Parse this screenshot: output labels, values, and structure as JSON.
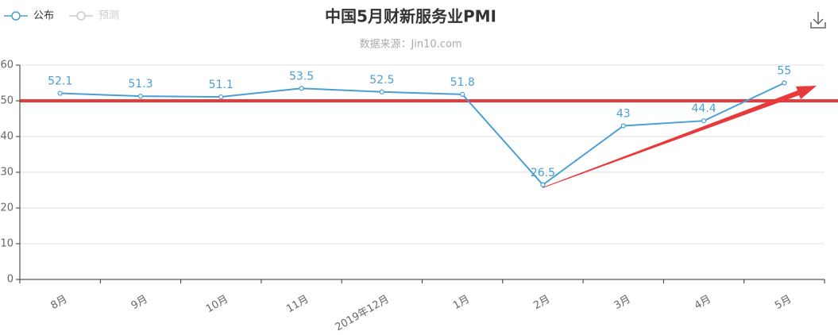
{
  "chart_data": {
    "type": "line",
    "title": "中国5月财新服务业PMI",
    "subtitle": "数据来源：Jin10.com",
    "categories": [
      "8月",
      "9月",
      "10月",
      "11月",
      "2019年12月",
      "1月",
      "2月",
      "3月",
      "4月",
      "5月"
    ],
    "series": [
      {
        "name": "公布",
        "color": "#4a9fd4",
        "values": [
          52.1,
          51.3,
          51.1,
          53.5,
          52.5,
          51.8,
          26.5,
          43,
          44.4,
          55
        ]
      },
      {
        "name": "预测",
        "color": "#cccccc",
        "values": [
          null,
          null,
          null,
          null,
          null,
          null,
          null,
          null,
          null,
          null
        ]
      }
    ],
    "ylim": [
      0,
      60
    ],
    "yticks": [
      0,
      10,
      20,
      30,
      40,
      50,
      60
    ],
    "grid": true,
    "reference_line": {
      "value": 50,
      "color": "#e83a3a"
    }
  }
}
